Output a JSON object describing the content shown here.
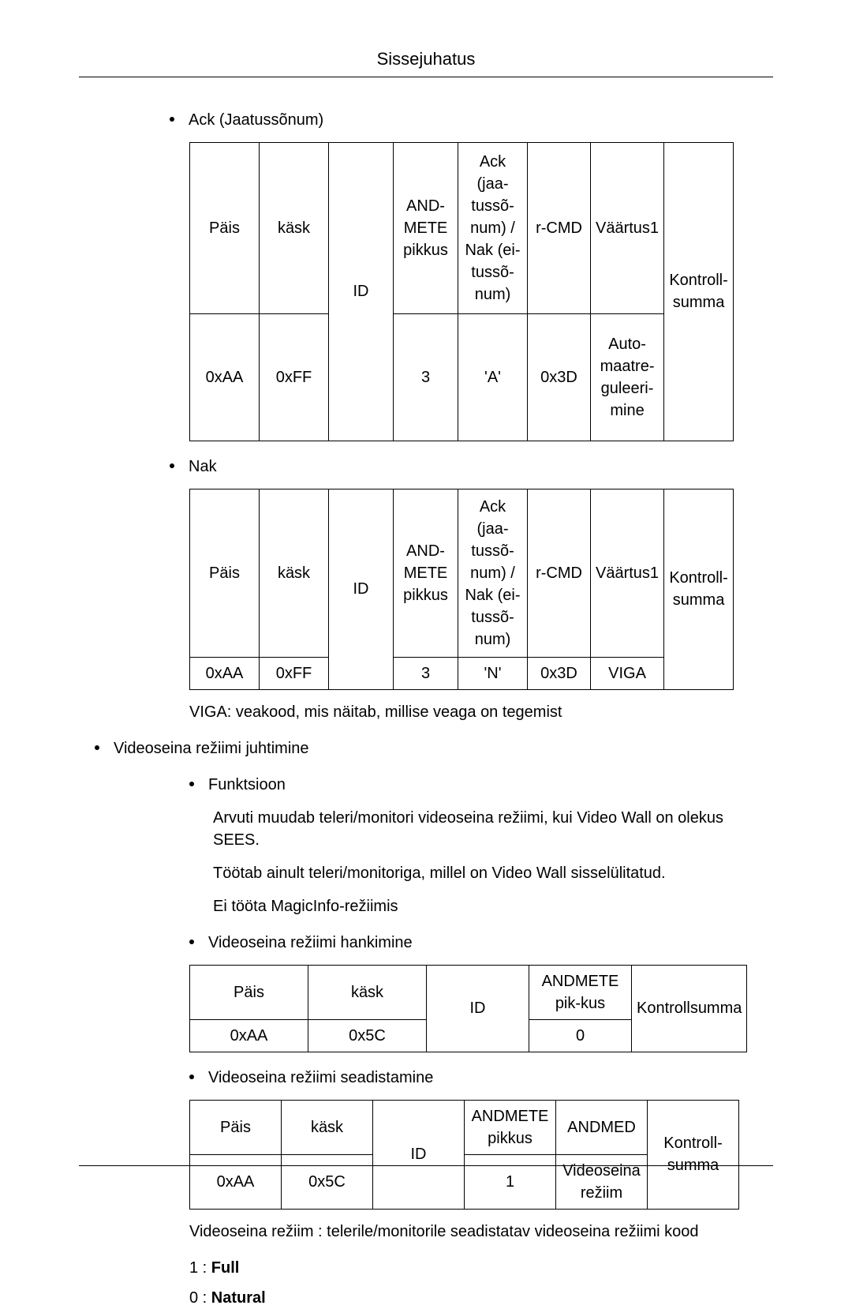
{
  "page": {
    "title": "Sissejuhatus"
  },
  "sections": {
    "ack": {
      "label": "Ack (Jaatussõnum)"
    },
    "nak": {
      "label": "Nak"
    },
    "video_ctrl": {
      "label": "Videoseina režiimi juhtimine"
    },
    "func": {
      "label": "Funktsioon"
    },
    "get_mode": {
      "label": "Videoseina režiimi hankimine"
    },
    "set_mode": {
      "label": "Videoseina režiimi seadistamine"
    }
  },
  "table_ack": {
    "head": [
      "Päis",
      "käsk",
      "ID",
      "AND-METE pikkus",
      "Ack (jaa-tussõ-num) / Nak (ei-tussõ-num)",
      "r-CMD",
      "Väärtus1",
      "Kontroll-summa"
    ],
    "row": [
      "0xAA",
      "0xFF",
      "",
      "3",
      "'A'",
      "0x3D",
      "Auto-maatre-guleeri-mine",
      ""
    ]
  },
  "table_nak": {
    "head": [
      "Päis",
      "käsk",
      "ID",
      "AND-METE pikkus",
      "Ack (jaa-tussõ-num) / Nak (ei-tussõ-num)",
      "r-CMD",
      "Väärtus1",
      "Kontroll-summa"
    ],
    "row": [
      "0xAA",
      "0xFF",
      "",
      "3",
      "'N'",
      "0x3D",
      "VIGA",
      ""
    ]
  },
  "viga_note": "VIGA: veakood, mis näitab, millise veaga on tegemist",
  "func_lines": [
    "Arvuti muudab teleri/monitori videoseina režiimi, kui Video Wall on olekus SEES.",
    "Töötab ainult teleri/monitoriga, millel on Video Wall sisselülitatud.",
    "Ei tööta MagicInfo-režiimis"
  ],
  "table_get": {
    "head": [
      "Päis",
      "käsk",
      "ID",
      "ANDMETE pik-kus",
      "Kontrollsumma"
    ],
    "row": [
      "0xAA",
      "0x5C",
      "",
      "0",
      ""
    ]
  },
  "table_set": {
    "head": [
      "Päis",
      "käsk",
      "ID",
      "ANDMETE pikkus",
      "ANDMED",
      "Kontroll-summa"
    ],
    "row": [
      "0xAA",
      "0x5C",
      "",
      "1",
      "Videoseina režiim",
      ""
    ]
  },
  "set_note": "Videoseina režiim : telerile/monitorile seadistatav videoseina režiimi kood",
  "codes": [
    {
      "k": "1 : ",
      "v": "Full"
    },
    {
      "k": "0 : ",
      "v": "Natural"
    }
  ]
}
